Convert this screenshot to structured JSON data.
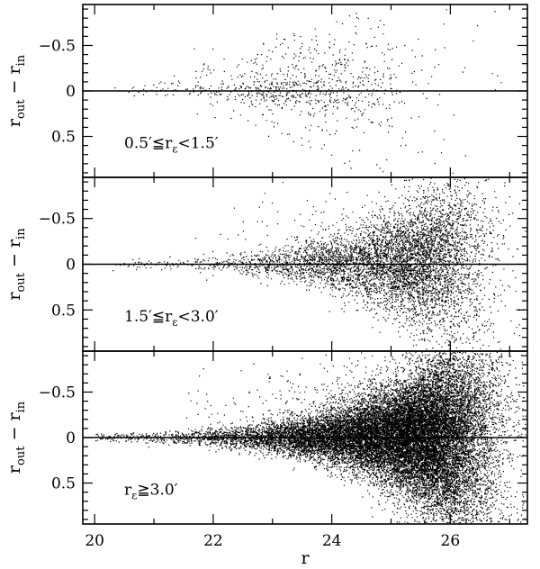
{
  "chart_data": {
    "type": "scatter",
    "xlabel": "r",
    "xlim": [
      19.8,
      27.3
    ],
    "x_ticks": [
      20,
      21,
      22,
      23,
      24,
      25,
      26,
      27
    ],
    "x_tick_labels": [
      "20",
      "22",
      "24",
      "26"
    ],
    "grid": false,
    "legend": "none",
    "marker_color": "#000000",
    "reference_line_y": 0,
    "panels": [
      {
        "annotation_main": "0.5′≦r",
        "annotation_sub": "ε",
        "annotation_tail": "<1.5′",
        "ylabel_main": "r",
        "ylabel_sub1": "out",
        "ylabel_mid": " − r",
        "ylabel_sub2": "in",
        "ylim": [
          0.95,
          -0.95
        ],
        "y_tick_labels": [
          "−0.5",
          "0",
          "0.5"
        ],
        "y_tick_values": [
          -0.5,
          0,
          0.5
        ],
        "approx_points": 900,
        "r_range": [
          20.3,
          27.0
        ],
        "peak_density_r": 23.5
      },
      {
        "annotation_main": "1.5′≦r",
        "annotation_sub": "ε",
        "annotation_tail": "<3.0′",
        "ylabel_main": "r",
        "ylabel_sub1": "out",
        "ylabel_mid": " − r",
        "ylabel_sub2": "in",
        "ylim": [
          0.95,
          -0.95
        ],
        "y_tick_labels": [
          "−0.5",
          "0",
          "0.5"
        ],
        "y_tick_values": [
          -0.5,
          0,
          0.5
        ],
        "approx_points": 6000,
        "r_range": [
          20.3,
          27.3
        ],
        "peak_density_r": 25.5
      },
      {
        "annotation_main": "r",
        "annotation_sub": "ε",
        "annotation_tail": "≧3.0′",
        "ylabel_main": "r",
        "ylabel_sub1": "out",
        "ylabel_mid": " − r",
        "ylabel_sub2": "in",
        "ylim": [
          0.95,
          -0.95
        ],
        "y_tick_labels": [
          "−0.5",
          "0",
          "0.5"
        ],
        "y_tick_values": [
          -0.5,
          0,
          0.5
        ],
        "approx_points": 22000,
        "r_range": [
          20.0,
          27.3
        ],
        "peak_density_r": 25.6
      }
    ]
  }
}
